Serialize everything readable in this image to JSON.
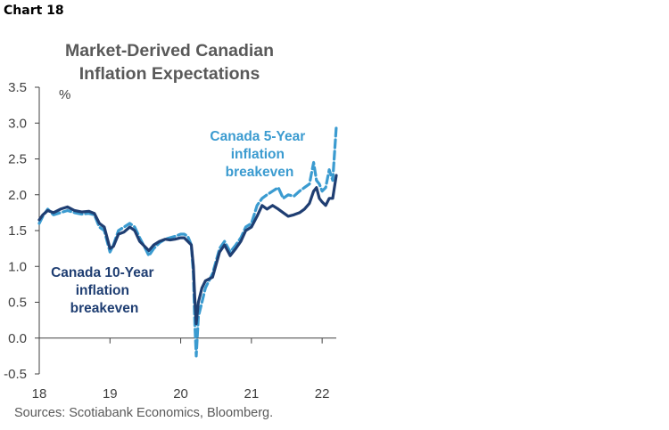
{
  "header": {
    "chart_label": "Chart 18"
  },
  "source": "Sources: Scotiabank Economics, Bloomberg.",
  "colors": {
    "ten_year": "#1f3e72",
    "five_year": "#3b9bd0",
    "axis": "#404040"
  },
  "chart_data": {
    "type": "line",
    "title": [
      "Market-Derived Canadian",
      "Inflation Expectations"
    ],
    "ylabel": "%",
    "xlabel": "",
    "ylim": [
      -0.5,
      3.5
    ],
    "xlim": [
      2018.0,
      2022.2
    ],
    "yticks": [
      -0.5,
      0.0,
      0.5,
      1.0,
      1.5,
      2.0,
      2.5,
      3.0,
      3.5
    ],
    "ytick_labels": [
      "-0.5",
      "0.0",
      "0.5",
      "1.0",
      "1.5",
      "2.0",
      "2.5",
      "3.0",
      "3.5"
    ],
    "xticks": [
      2018,
      2019,
      2020,
      2021,
      2022
    ],
    "xtick_labels": [
      "18",
      "19",
      "20",
      "21",
      "22"
    ],
    "grid": false,
    "series": [
      {
        "name": "Canada 10-Year inflation breakeven",
        "label_lines": [
          "Canada 10-Year",
          "inflation",
          "breakeven"
        ],
        "style": "solid",
        "x": [
          2018.0,
          2018.05,
          2018.12,
          2018.2,
          2018.3,
          2018.4,
          2018.5,
          2018.6,
          2018.7,
          2018.78,
          2018.85,
          2018.92,
          2019.0,
          2019.05,
          2019.12,
          2019.2,
          2019.28,
          2019.35,
          2019.42,
          2019.5,
          2019.55,
          2019.62,
          2019.7,
          2019.78,
          2019.85,
          2019.92,
          2020.0,
          2020.05,
          2020.1,
          2020.15,
          2020.18,
          2020.2,
          2020.22,
          2020.25,
          2020.3,
          2020.35,
          2020.45,
          2020.55,
          2020.62,
          2020.7,
          2020.78,
          2020.85,
          2020.92,
          2021.0,
          2021.08,
          2021.15,
          2021.22,
          2021.3,
          2021.38,
          2021.45,
          2021.52,
          2021.6,
          2021.68,
          2021.75,
          2021.82,
          2021.88,
          2021.92,
          2021.96,
          2022.0,
          2022.05,
          2022.1,
          2022.15,
          2022.2
        ],
        "y": [
          1.65,
          1.72,
          1.78,
          1.75,
          1.8,
          1.83,
          1.78,
          1.76,
          1.77,
          1.74,
          1.6,
          1.55,
          1.25,
          1.28,
          1.45,
          1.48,
          1.55,
          1.5,
          1.35,
          1.27,
          1.22,
          1.3,
          1.35,
          1.38,
          1.37,
          1.38,
          1.4,
          1.4,
          1.35,
          1.3,
          1.0,
          0.55,
          0.2,
          0.5,
          0.7,
          0.8,
          0.85,
          1.2,
          1.3,
          1.15,
          1.25,
          1.35,
          1.5,
          1.55,
          1.7,
          1.85,
          1.8,
          1.85,
          1.8,
          1.75,
          1.7,
          1.72,
          1.75,
          1.8,
          1.88,
          2.05,
          2.1,
          1.95,
          1.9,
          1.85,
          1.95,
          1.95,
          2.27
        ]
      },
      {
        "name": "Canada 5-Year inflation breakeven",
        "label_lines": [
          "Canada 5-Year",
          "inflation",
          "breakeven"
        ],
        "style": "dashed",
        "x": [
          2018.0,
          2018.05,
          2018.12,
          2018.2,
          2018.3,
          2018.4,
          2018.5,
          2018.6,
          2018.7,
          2018.78,
          2018.85,
          2018.92,
          2019.0,
          2019.05,
          2019.12,
          2019.2,
          2019.28,
          2019.35,
          2019.42,
          2019.5,
          2019.55,
          2019.62,
          2019.7,
          2019.78,
          2019.85,
          2019.92,
          2020.0,
          2020.05,
          2020.1,
          2020.15,
          2020.18,
          2020.2,
          2020.22,
          2020.25,
          2020.3,
          2020.35,
          2020.45,
          2020.55,
          2020.62,
          2020.7,
          2020.78,
          2020.85,
          2020.92,
          2021.0,
          2021.08,
          2021.15,
          2021.22,
          2021.3,
          2021.38,
          2021.45,
          2021.52,
          2021.6,
          2021.68,
          2021.75,
          2021.82,
          2021.88,
          2021.92,
          2021.96,
          2022.0,
          2022.05,
          2022.1,
          2022.15,
          2022.2
        ],
        "y": [
          1.6,
          1.7,
          1.8,
          1.72,
          1.75,
          1.78,
          1.75,
          1.73,
          1.74,
          1.72,
          1.55,
          1.5,
          1.2,
          1.3,
          1.5,
          1.55,
          1.6,
          1.55,
          1.4,
          1.25,
          1.15,
          1.25,
          1.33,
          1.38,
          1.4,
          1.42,
          1.45,
          1.45,
          1.42,
          1.3,
          0.9,
          0.2,
          -0.25,
          0.3,
          0.5,
          0.7,
          0.9,
          1.25,
          1.35,
          1.2,
          1.3,
          1.4,
          1.55,
          1.6,
          1.85,
          1.95,
          2.0,
          2.05,
          2.1,
          1.95,
          2.0,
          1.98,
          2.05,
          2.1,
          2.15,
          2.45,
          2.2,
          2.15,
          2.05,
          2.1,
          2.35,
          2.2,
          2.95
        ]
      }
    ]
  }
}
